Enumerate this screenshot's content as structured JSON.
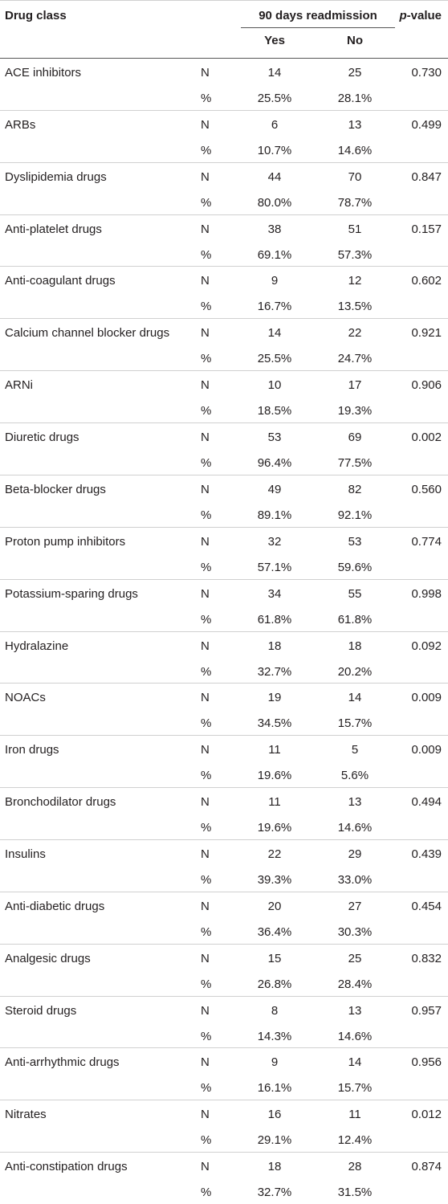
{
  "header": {
    "drug_class": "Drug class",
    "readmission": "90 days readmission",
    "yes": "Yes",
    "no": "No",
    "p_italic": "p",
    "p_rest": "-value"
  },
  "table": {
    "rows": [
      {
        "drug": "ACE inhibitors",
        "n": "N",
        "yes_n": "14",
        "no_n": "25",
        "p": "0.730",
        "pct": "%",
        "yes_pct": "25.5%",
        "no_pct": "28.1%"
      },
      {
        "drug": "ARBs",
        "n": "N",
        "yes_n": "6",
        "no_n": "13",
        "p": "0.499",
        "pct": "%",
        "yes_pct": "10.7%",
        "no_pct": "14.6%"
      },
      {
        "drug": "Dyslipidemia drugs",
        "n": "N",
        "yes_n": "44",
        "no_n": "70",
        "p": "0.847",
        "pct": "%",
        "yes_pct": "80.0%",
        "no_pct": "78.7%"
      },
      {
        "drug": "Anti-platelet drugs",
        "n": "N",
        "yes_n": "38",
        "no_n": "51",
        "p": "0.157",
        "pct": "%",
        "yes_pct": "69.1%",
        "no_pct": "57.3%"
      },
      {
        "drug": "Anti-coagulant drugs",
        "n": "N",
        "yes_n": "9",
        "no_n": "12",
        "p": "0.602",
        "pct": "%",
        "yes_pct": "16.7%",
        "no_pct": "13.5%"
      },
      {
        "drug": "Calcium channel blocker drugs",
        "n": "N",
        "yes_n": "14",
        "no_n": "22",
        "p": "0.921",
        "pct": "%",
        "yes_pct": "25.5%",
        "no_pct": "24.7%"
      },
      {
        "drug": "ARNi",
        "n": "N",
        "yes_n": "10",
        "no_n": "17",
        "p": "0.906",
        "pct": "%",
        "yes_pct": "18.5%",
        "no_pct": "19.3%"
      },
      {
        "drug": "Diuretic drugs",
        "n": "N",
        "yes_n": "53",
        "no_n": "69",
        "p": "0.002",
        "pct": "%",
        "yes_pct": "96.4%",
        "no_pct": "77.5%"
      },
      {
        "drug": "Beta-blocker drugs",
        "n": "N",
        "yes_n": "49",
        "no_n": "82",
        "p": "0.560",
        "pct": "%",
        "yes_pct": "89.1%",
        "no_pct": "92.1%"
      },
      {
        "drug": "Proton pump inhibitors",
        "n": "N",
        "yes_n": "32",
        "no_n": "53",
        "p": "0.774",
        "pct": "%",
        "yes_pct": "57.1%",
        "no_pct": "59.6%"
      },
      {
        "drug": "Potassium-sparing drugs",
        "n": "N",
        "yes_n": "34",
        "no_n": "55",
        "p": "0.998",
        "pct": "%",
        "yes_pct": "61.8%",
        "no_pct": "61.8%"
      },
      {
        "drug": "Hydralazine",
        "n": "N",
        "yes_n": "18",
        "no_n": "18",
        "p": "0.092",
        "pct": "%",
        "yes_pct": "32.7%",
        "no_pct": "20.2%"
      },
      {
        "drug": "NOACs",
        "n": "N",
        "yes_n": "19",
        "no_n": "14",
        "p": "0.009",
        "pct": "%",
        "yes_pct": "34.5%",
        "no_pct": "15.7%"
      },
      {
        "drug": "Iron drugs",
        "n": "N",
        "yes_n": "11",
        "no_n": "5",
        "p": "0.009",
        "pct": "%",
        "yes_pct": "19.6%",
        "no_pct": "5.6%"
      },
      {
        "drug": "Bronchodilator drugs",
        "n": "N",
        "yes_n": "11",
        "no_n": "13",
        "p": "0.494",
        "pct": "%",
        "yes_pct": "19.6%",
        "no_pct": "14.6%"
      },
      {
        "drug": "Insulins",
        "n": "N",
        "yes_n": "22",
        "no_n": "29",
        "p": "0.439",
        "pct": "%",
        "yes_pct": "39.3%",
        "no_pct": "33.0%"
      },
      {
        "drug": "Anti-diabetic drugs",
        "n": "N",
        "yes_n": "20",
        "no_n": "27",
        "p": "0.454",
        "pct": "%",
        "yes_pct": "36.4%",
        "no_pct": "30.3%"
      },
      {
        "drug": "Analgesic drugs",
        "n": "N",
        "yes_n": "15",
        "no_n": "25",
        "p": "0.832",
        "pct": "%",
        "yes_pct": "26.8%",
        "no_pct": "28.4%"
      },
      {
        "drug": "Steroid drugs",
        "n": "N",
        "yes_n": "8",
        "no_n": "13",
        "p": "0.957",
        "pct": "%",
        "yes_pct": "14.3%",
        "no_pct": "14.6%"
      },
      {
        "drug": "Anti-arrhythmic drugs",
        "n": "N",
        "yes_n": "9",
        "no_n": "14",
        "p": "0.956",
        "pct": "%",
        "yes_pct": "16.1%",
        "no_pct": "15.7%"
      },
      {
        "drug": "Nitrates",
        "n": "N",
        "yes_n": "16",
        "no_n": "11",
        "p": "0.012",
        "pct": "%",
        "yes_pct": "29.1%",
        "no_pct": "12.4%"
      },
      {
        "drug": "Anti-constipation drugs",
        "n": "N",
        "yes_n": "18",
        "no_n": "28",
        "p": "0.874",
        "pct": "%",
        "yes_pct": "32.7%",
        "no_pct": "31.5%"
      }
    ]
  }
}
